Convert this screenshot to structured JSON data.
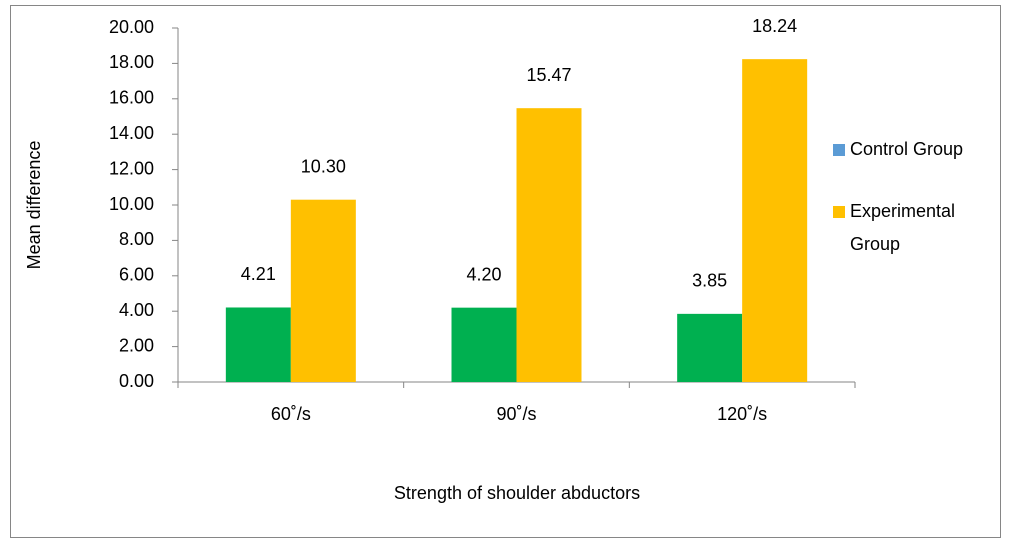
{
  "chart_data": {
    "type": "bar",
    "x_label": "Strength of shoulder abductors",
    "y_label": "Mean difference",
    "categories": [
      "60˚/s",
      "90˚/s",
      "120˚/s"
    ],
    "series": [
      {
        "name": "Control Group",
        "color": "#00b050",
        "legend_color": "#5b9bd5",
        "values": [
          4.21,
          4.2,
          3.85
        ],
        "value_labels": [
          "4.21",
          "4.20",
          "3.85"
        ]
      },
      {
        "name": "Experimental Group",
        "color": "#ffc000",
        "legend_color": "#ffc000",
        "values": [
          10.3,
          15.47,
          18.24
        ],
        "value_labels": [
          "10.30",
          "15.47",
          "18.24"
        ]
      }
    ],
    "ylim": [
      0,
      20
    ],
    "yticks": [
      {
        "value": 0,
        "label": "0.00"
      },
      {
        "value": 2,
        "label": "2.00"
      },
      {
        "value": 4,
        "label": "4.00"
      },
      {
        "value": 6,
        "label": "6.00"
      },
      {
        "value": 8,
        "label": "8.00"
      },
      {
        "value": 10,
        "label": "10.00"
      },
      {
        "value": 12,
        "label": "12.00"
      },
      {
        "value": 14,
        "label": "14.00"
      },
      {
        "value": 16,
        "label": "16.00"
      },
      {
        "value": 18,
        "label": "18.00"
      },
      {
        "value": 20,
        "label": "20.00"
      }
    ],
    "grid": false,
    "legend": "right"
  }
}
